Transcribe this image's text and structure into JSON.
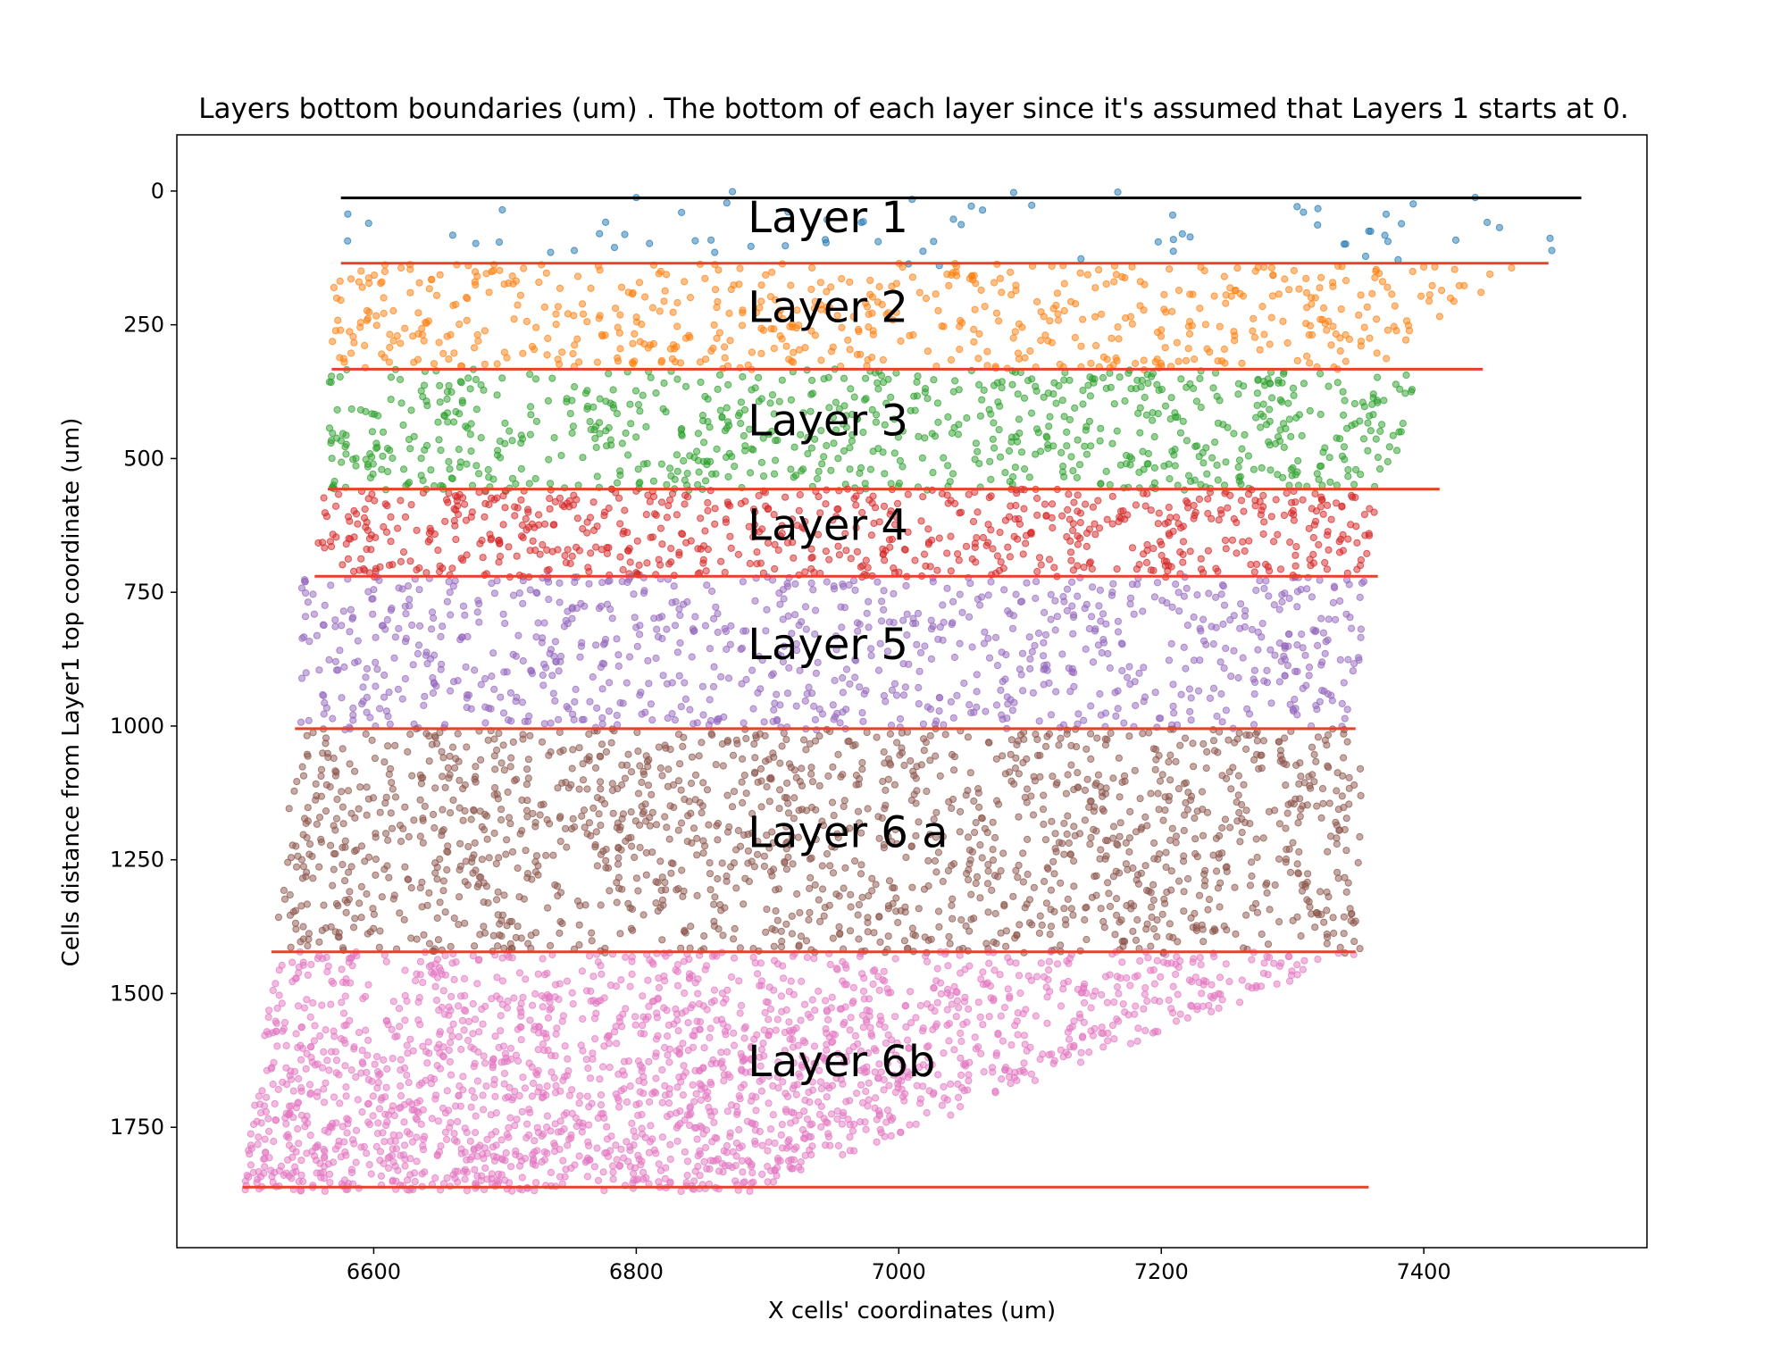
{
  "chart_data": {
    "type": "scatter",
    "title": "Layers bottom boundaries (um) . The bottom of each layer since it's assumed that Layers 1 starts at 0.",
    "xlabel": "X cells' coordinates (um)",
    "ylabel": "Cells distance from Layer1 top coordinate (um)",
    "xlim": [
      6450,
      7570
    ],
    "ylim": [
      1975,
      -105
    ],
    "y_inverted": true,
    "grid": false,
    "xticks": [
      "6600",
      "6800",
      "7000",
      "7200",
      "7400"
    ],
    "yticks": [
      "0",
      "250",
      "500",
      "750",
      "1000",
      "1250",
      "1500",
      "1750"
    ],
    "top_line": {
      "x": [
        6575,
        7520
      ],
      "y": 13,
      "color": "#000000"
    },
    "boundary_color": "#e8412a",
    "boundaries": [
      {
        "x": [
          6575,
          7495
        ],
        "y": 135
      },
      {
        "x": [
          6568,
          7445
        ],
        "y": 333
      },
      {
        "x": [
          6565,
          7412
        ],
        "y": 557
      },
      {
        "x": [
          6555,
          7365
        ],
        "y": 720
      },
      {
        "x": [
          6540,
          7348
        ],
        "y": 1005
      },
      {
        "x": [
          6522,
          7348
        ],
        "y": 1422
      },
      {
        "x": [
          6500,
          7358
        ],
        "y": 1862
      }
    ],
    "layer_labels": [
      {
        "text": "Layer 1",
        "x": 6885,
        "y": 50
      },
      {
        "text": "Layer 2",
        "x": 6885,
        "y": 218
      },
      {
        "text": "Layer 3",
        "x": 6885,
        "y": 430
      },
      {
        "text": "Layer 4",
        "x": 6885,
        "y": 625
      },
      {
        "text": "Layer 5",
        "x": 6885,
        "y": 848
      },
      {
        "text": "Layer 6 a",
        "x": 6885,
        "y": 1200
      },
      {
        "text": "Layer 6b",
        "x": 6885,
        "y": 1628
      }
    ],
    "series": [
      {
        "color": "#1f77b4",
        "y_range": [
          0,
          140
        ],
        "x_left": [
          6575,
          6575
        ],
        "x_right": [
          7500,
          7500
        ],
        "count": 70
      },
      {
        "color": "#ff7f0e",
        "y_range": [
          135,
          335
        ],
        "x_left": [
          6568,
          6568
        ],
        "x_right": [
          7480,
          7360
        ],
        "count": 600
      },
      {
        "color": "#2ca02c",
        "y_range": [
          333,
          560
        ],
        "x_left": [
          6565,
          6565
        ],
        "x_right": [
          7400,
          7370
        ],
        "count": 800
      },
      {
        "color": "#d62728",
        "y_range": [
          557,
          722
        ],
        "x_left": [
          6560,
          6555
        ],
        "x_right": [
          7370,
          7352
        ],
        "count": 700
      },
      {
        "color": "#9467bd",
        "y_range": [
          720,
          1008
        ],
        "x_left": [
          6545,
          6540
        ],
        "x_right": [
          7355,
          7350
        ],
        "count": 900
      },
      {
        "color": "#8c564b",
        "y_range": [
          1005,
          1425
        ],
        "x_left": [
          6540,
          6525
        ],
        "x_right": [
          7352,
          7352
        ],
        "count": 1600
      },
      {
        "color": "#e377c2",
        "y_range": [
          1422,
          1870
        ],
        "x_left": [
          6525,
          6500
        ],
        "x_right": [
          7360,
          6890
        ],
        "count": 2000
      }
    ]
  }
}
